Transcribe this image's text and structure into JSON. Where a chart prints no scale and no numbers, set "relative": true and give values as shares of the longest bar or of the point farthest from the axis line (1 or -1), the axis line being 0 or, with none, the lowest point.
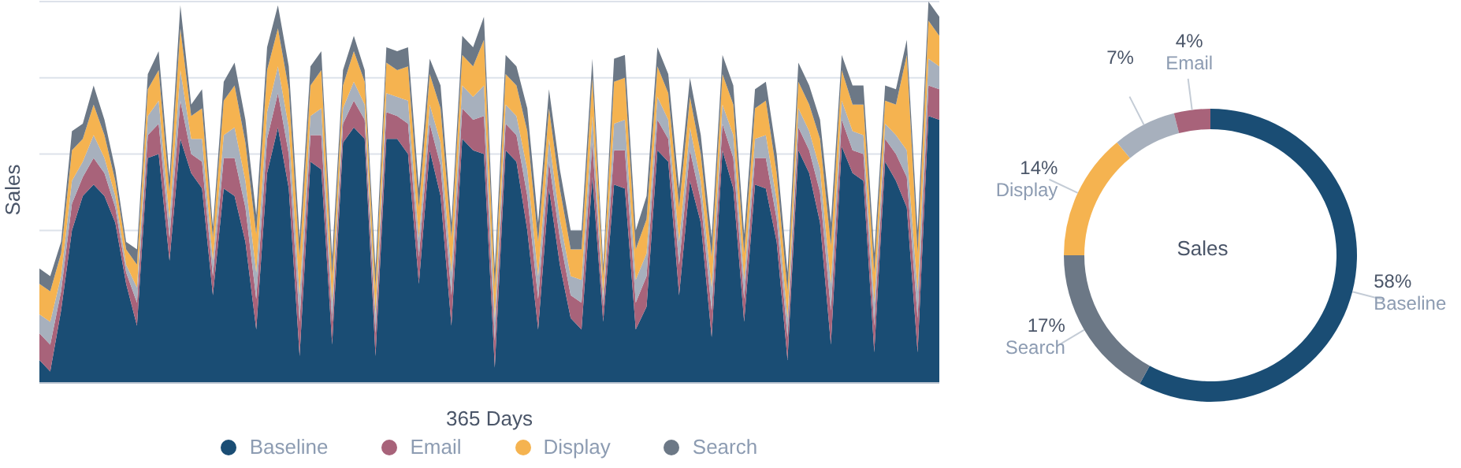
{
  "chart_data": [
    {
      "type": "area",
      "stacked": true,
      "relative": true,
      "xlabel": "365 Days",
      "ylabel": "Sales",
      "legend": "bottom",
      "grid": "y",
      "categories": [
        null,
        null,
        null,
        null,
        null,
        null,
        null,
        null,
        null,
        null,
        null,
        null,
        null,
        null,
        null,
        null,
        null,
        null,
        null,
        null,
        null,
        null,
        null,
        null,
        null,
        null,
        null,
        null,
        null,
        null,
        null,
        null,
        null,
        null,
        null,
        null,
        null,
        null,
        null,
        null,
        null,
        null,
        null,
        null,
        null,
        null,
        null,
        null,
        null,
        null,
        null,
        null,
        null,
        null,
        null,
        null,
        null,
        null,
        null,
        null,
        null,
        null,
        null,
        null,
        null,
        null,
        null,
        null,
        null,
        null,
        null,
        null,
        null,
        null,
        null,
        null,
        null,
        null,
        null,
        null,
        null,
        null,
        null,
        null
      ],
      "series": [
        {
          "name": "Baseline",
          "color": "#1a4d74",
          "values": [
            0.06,
            0.03,
            0.19,
            0.4,
            0.49,
            0.52,
            0.49,
            0.42,
            0.26,
            0.15,
            0.59,
            0.6,
            0.32,
            0.64,
            0.55,
            0.51,
            0.23,
            0.51,
            0.49,
            0.37,
            0.14,
            0.55,
            0.67,
            0.51,
            0.07,
            0.58,
            0.56,
            0.1,
            0.63,
            0.67,
            0.64,
            0.07,
            0.64,
            0.64,
            0.6,
            0.26,
            0.61,
            0.49,
            0.15,
            0.64,
            0.61,
            0.6,
            0.04,
            0.61,
            0.58,
            0.4,
            0.14,
            0.51,
            0.31,
            0.17,
            0.14,
            0.54,
            0.16,
            0.52,
            0.51,
            0.14,
            0.2,
            0.61,
            0.58,
            0.23,
            0.53,
            0.42,
            0.12,
            0.61,
            0.51,
            0.16,
            0.52,
            0.51,
            0.37,
            0.06,
            0.61,
            0.55,
            0.42,
            0.1,
            0.62,
            0.55,
            0.53,
            0.08,
            0.58,
            0.53,
            0.46,
            0.08,
            0.7,
            0.69
          ]
        },
        {
          "name": "Email",
          "color": "#a8637a",
          "values": [
            0.07,
            0.07,
            0.05,
            0.07,
            0.05,
            0.07,
            0.06,
            0.04,
            0.03,
            0.06,
            0.06,
            0.08,
            0.06,
            0.1,
            0.05,
            0.07,
            0.05,
            0.08,
            0.1,
            0.09,
            0.08,
            0.09,
            0.09,
            0.09,
            0.09,
            0.07,
            0.09,
            0.06,
            0.05,
            0.07,
            0.05,
            0.06,
            0.07,
            0.06,
            0.08,
            0.07,
            0.07,
            0.08,
            0.08,
            0.08,
            0.08,
            0.1,
            0.07,
            0.07,
            0.07,
            0.09,
            0.08,
            0.07,
            0.07,
            0.06,
            0.07,
            0.09,
            0.04,
            0.09,
            0.1,
            0.07,
            0.08,
            0.08,
            0.06,
            0.08,
            0.08,
            0.06,
            0.07,
            0.07,
            0.08,
            0.06,
            0.07,
            0.08,
            0.06,
            0.06,
            0.06,
            0.06,
            0.08,
            0.09,
            0.07,
            0.06,
            0.07,
            0.07,
            0.06,
            0.07,
            0.08,
            0.09,
            0.08,
            0.08
          ]
        },
        {
          "color": "#a7b0bd",
          "values": [
            0.05,
            0.06,
            0.04,
            0.06,
            0.04,
            0.06,
            0.04,
            0.03,
            0.02,
            0.04,
            0.05,
            0.06,
            0.05,
            0.08,
            0.04,
            0.06,
            0.04,
            0.06,
            0.08,
            0.07,
            0.07,
            0.07,
            0.07,
            0.07,
            0.07,
            0.05,
            0.07,
            0.05,
            0.04,
            0.05,
            0.04,
            0.05,
            0.05,
            0.05,
            0.06,
            0.05,
            0.05,
            0.06,
            0.06,
            0.06,
            0.06,
            0.08,
            0.06,
            0.05,
            0.05,
            0.07,
            0.06,
            0.06,
            0.05,
            0.05,
            0.06,
            0.07,
            0.03,
            0.07,
            0.08,
            0.06,
            0.06,
            0.06,
            0.05,
            0.06,
            0.06,
            0.05,
            0.06,
            0.05,
            0.06,
            0.05,
            0.05,
            0.06,
            0.05,
            0.05,
            0.05,
            0.05,
            0.06,
            0.07,
            0.05,
            0.05,
            0.05,
            0.06,
            0.04,
            0.05,
            0.07,
            0.07,
            0.07,
            0.06
          ]
        },
        {
          "name": "Display",
          "color": "#f5b350",
          "values": [
            0.08,
            0.08,
            0.06,
            0.08,
            0.06,
            0.08,
            0.06,
            0.04,
            0.04,
            0.06,
            0.07,
            0.08,
            0.07,
            0.11,
            0.06,
            0.08,
            0.06,
            0.09,
            0.11,
            0.1,
            0.1,
            0.11,
            0.1,
            0.1,
            0.1,
            0.08,
            0.1,
            0.07,
            0.06,
            0.08,
            0.06,
            0.07,
            0.08,
            0.07,
            0.09,
            0.08,
            0.08,
            0.09,
            0.09,
            0.08,
            0.08,
            0.12,
            0.08,
            0.08,
            0.08,
            0.1,
            0.09,
            0.08,
            0.08,
            0.07,
            0.08,
            0.1,
            0.05,
            0.11,
            0.11,
            0.08,
            0.09,
            0.08,
            0.07,
            0.09,
            0.08,
            0.07,
            0.08,
            0.08,
            0.08,
            0.07,
            0.08,
            0.09,
            0.07,
            0.07,
            0.07,
            0.07,
            0.08,
            0.1,
            0.08,
            0.07,
            0.08,
            0.08,
            0.06,
            0.08,
            0.25,
            0.1,
            0.1,
            0.08
          ]
        },
        {
          "name": "Search",
          "color": "#6c7886",
          "values": [
            0.04,
            0.04,
            0.03,
            0.05,
            0.04,
            0.05,
            0.04,
            0.03,
            0.02,
            0.04,
            0.04,
            0.05,
            0.04,
            0.06,
            0.03,
            0.05,
            0.03,
            0.05,
            0.06,
            0.06,
            0.05,
            0.06,
            0.06,
            0.06,
            0.05,
            0.05,
            0.05,
            0.05,
            0.04,
            0.04,
            0.03,
            0.05,
            0.04,
            0.05,
            0.05,
            0.05,
            0.04,
            0.06,
            0.04,
            0.05,
            0.05,
            0.06,
            0.05,
            0.05,
            0.05,
            0.06,
            0.05,
            0.05,
            0.05,
            0.05,
            0.05,
            0.05,
            0.03,
            0.06,
            0.06,
            0.05,
            0.06,
            0.05,
            0.05,
            0.05,
            0.05,
            0.05,
            0.05,
            0.05,
            0.05,
            0.05,
            0.05,
            0.05,
            0.05,
            0.05,
            0.05,
            0.05,
            0.05,
            0.06,
            0.04,
            0.05,
            0.05,
            0.05,
            0.04,
            0.04,
            0.04,
            0.06,
            0.05,
            0.05
          ]
        }
      ]
    },
    {
      "type": "donut",
      "title": "Sales",
      "categories": [
        "Baseline",
        "Search",
        "Display",
        null,
        "Email"
      ],
      "values": [
        58,
        17,
        14,
        7,
        4
      ],
      "value_labels": [
        "58%",
        "17%",
        "14%",
        "7%",
        "4%"
      ],
      "colors": [
        "#1a4d74",
        "#6c7886",
        "#f5b350",
        "#a7b0bd",
        "#a8637a"
      ]
    }
  ]
}
